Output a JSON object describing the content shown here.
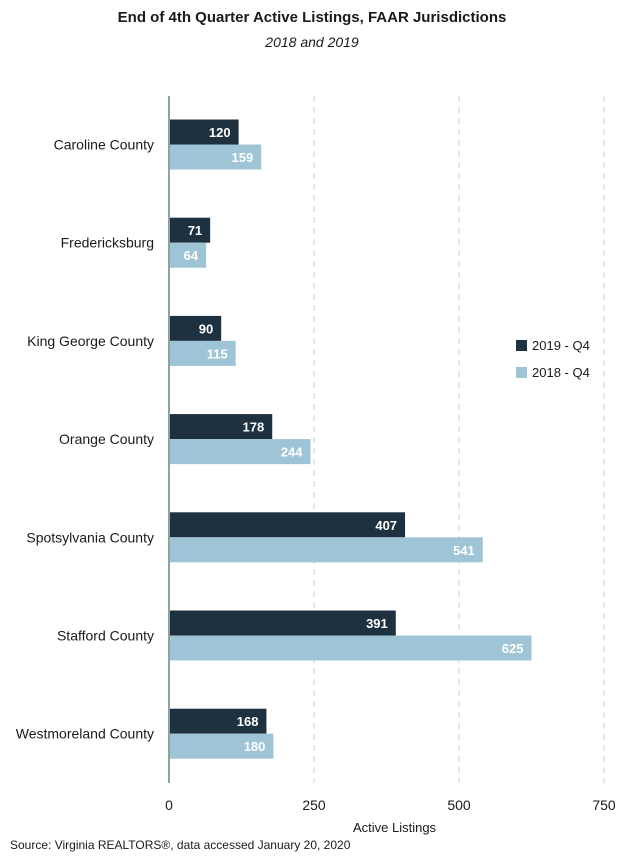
{
  "chart_data": {
    "type": "bar",
    "orientation": "horizontal",
    "title": "End of 4th Quarter Active Listings, FAAR Jurisdictions",
    "subtitle": "2018 and 2019",
    "xlabel": "Active Listings",
    "ylabel": "",
    "xlim": [
      0,
      750
    ],
    "xticks": [
      0,
      250,
      500,
      750
    ],
    "grid": "vertical dashed",
    "legend_position": "right",
    "categories": [
      "Caroline County",
      "Fredericksburg",
      "King George County",
      "Orange County",
      "Spotsylvania County",
      "Stafford County",
      "Westmoreland County"
    ],
    "series": [
      {
        "name": "2019 - Q4",
        "color": "#1e3140",
        "values": [
          120,
          71,
          90,
          178,
          407,
          391,
          168
        ]
      },
      {
        "name": "2018 - Q4",
        "color": "#9fc4d5",
        "values": [
          159,
          64,
          115,
          244,
          541,
          625,
          180
        ]
      }
    ],
    "source": "Source: Virginia REALTORS®, data accessed January 20, 2020"
  }
}
